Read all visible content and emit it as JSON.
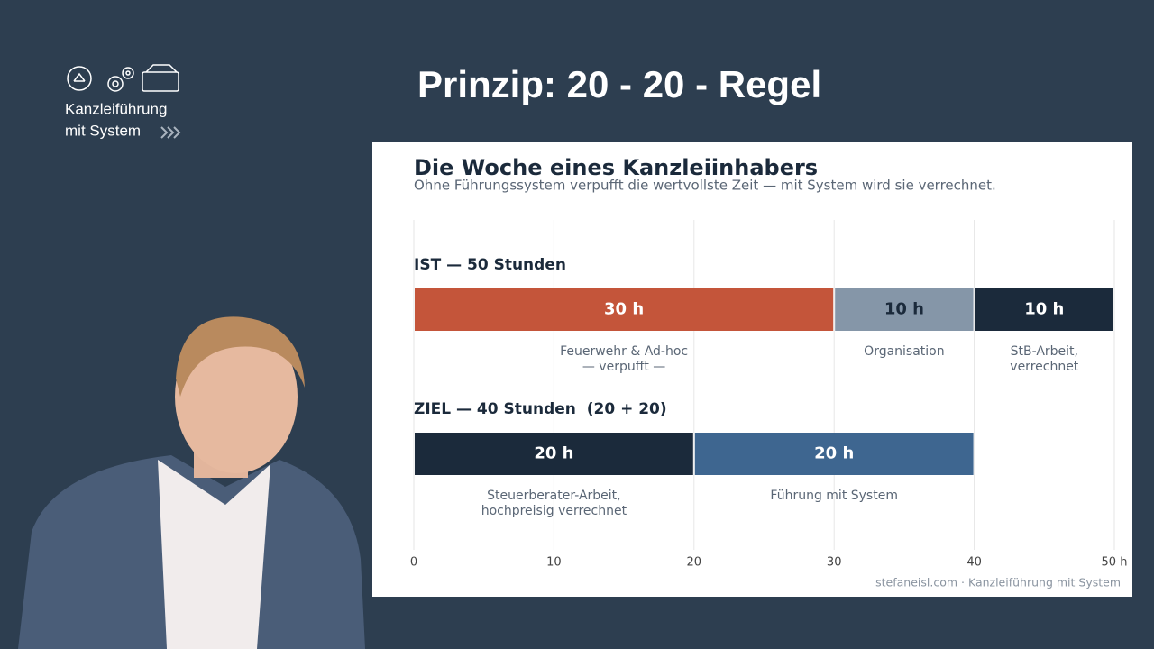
{
  "header": {
    "title": "Prinzip: 20 - 20 - Regel",
    "logo_lines": [
      "Kanzleiführung",
      "mit System"
    ]
  },
  "chart_data": {
    "type": "stacked-bar",
    "title": "Die Woche eines Kanzleiinhabers",
    "subtitle": "Ohne Führungssystem verpufft die wertvollste Zeit — mit System wird sie verrechnet.",
    "rows": [
      {
        "label": "IST — 50 Stunden",
        "values": [
          30,
          10,
          10
        ],
        "value_labels": [
          "30 h",
          "10 h",
          "10 h"
        ],
        "colors": [
          "#c4553a",
          "#8596a8",
          "#1b2a3b"
        ],
        "label_colors": [
          "#ffffff",
          "#1b2a3b",
          "#ffffff"
        ],
        "notes": [
          [
            "Feuerwehr & Ad-hoc",
            "— verpufft —"
          ],
          [
            "Organisation"
          ],
          [
            "StB-Arbeit,",
            "verrechnet"
          ]
        ]
      },
      {
        "label": "ZIEL — 40 Stunden  (20 + 20)",
        "values": [
          20,
          20
        ],
        "value_labels": [
          "20 h",
          "20 h"
        ],
        "colors": [
          "#1b2a3b",
          "#3e6690"
        ],
        "label_colors": [
          "#ffffff",
          "#ffffff"
        ],
        "notes": [
          [
            "Steuerberater-Arbeit,",
            "hochpreisig verrechnet"
          ],
          [
            "Führung mit System"
          ]
        ]
      }
    ],
    "xlim": [
      0,
      50
    ],
    "xticks": [
      0,
      10,
      20,
      30,
      40,
      {
        "value": 50,
        "label": "50 h"
      }
    ],
    "grid": true,
    "source": "stefaneisl.com · Kanzleiführung mit System"
  }
}
